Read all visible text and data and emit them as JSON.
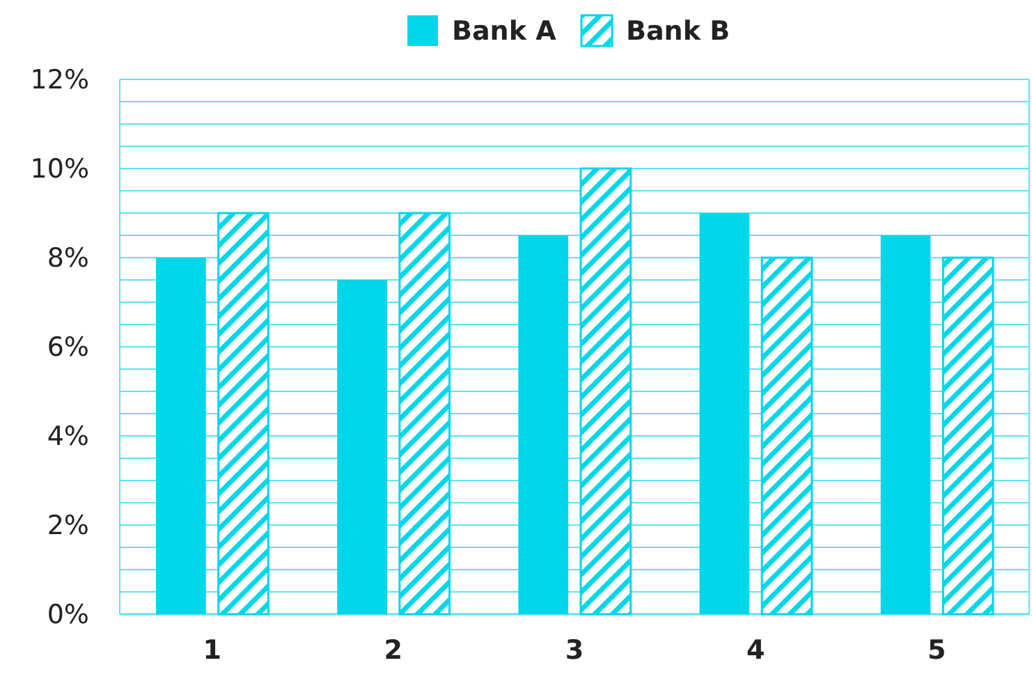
{
  "chart_data": {
    "type": "bar",
    "categories": [
      "1",
      "2",
      "3",
      "4",
      "5"
    ],
    "series": [
      {
        "name": "Bank A",
        "color": "#00d7e8",
        "values": [
          8,
          7.5,
          8.5,
          9,
          8.5
        ]
      },
      {
        "name": "Bank B",
        "color": "#00d7e8",
        "values": [
          9,
          9,
          10,
          8,
          8
        ]
      }
    ],
    "ylim": [
      0,
      12
    ],
    "yticks": [
      {
        "value": 0,
        "label": "0%"
      },
      {
        "value": 0.5,
        "label": null
      },
      {
        "value": 1,
        "label": null
      },
      {
        "value": 1.5,
        "label": null
      },
      {
        "value": 2,
        "label": "2%"
      },
      {
        "value": 2.5,
        "label": null
      },
      {
        "value": 3,
        "label": null
      },
      {
        "value": 3.5,
        "label": null
      },
      {
        "value": 4,
        "label": "4%"
      },
      {
        "value": 4.5,
        "label": null
      },
      {
        "value": 5,
        "label": null
      },
      {
        "value": 5.5,
        "label": null
      },
      {
        "value": 6,
        "label": "6%"
      },
      {
        "value": 6.5,
        "label": null
      },
      {
        "value": 7,
        "label": null
      },
      {
        "value": 7.5,
        "label": null
      },
      {
        "value": 8,
        "label": "8%"
      },
      {
        "value": 8.5,
        "label": null
      },
      {
        "value": 9,
        "label": null
      },
      {
        "value": 9.5,
        "label": null
      },
      {
        "value": 10,
        "label": "10%"
      },
      {
        "value": 10.5,
        "label": null
      },
      {
        "value": 11,
        "label": null
      },
      {
        "value": 11.5,
        "label": null
      },
      {
        "value": 12,
        "label": "12%"
      }
    ],
    "grid": "y",
    "legend": "top"
  }
}
